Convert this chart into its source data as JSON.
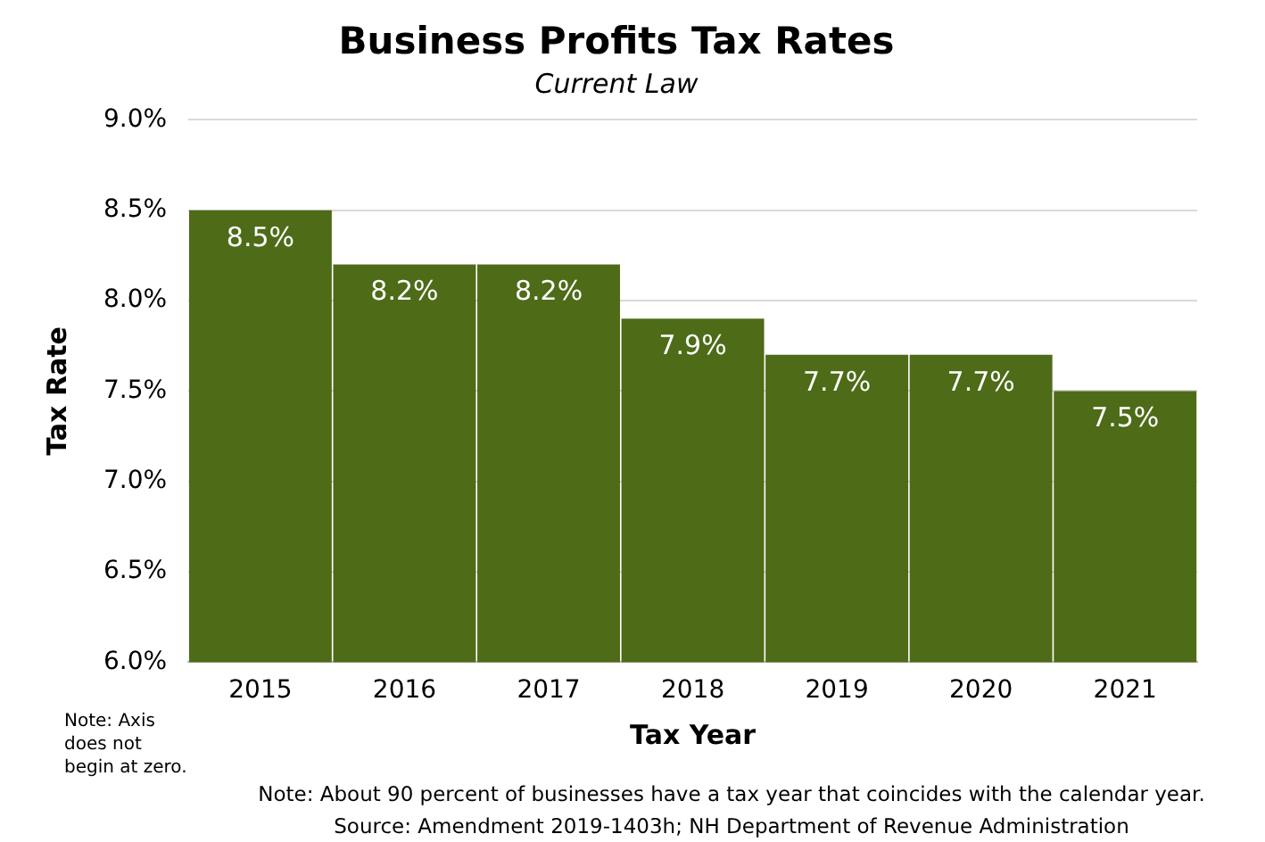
{
  "chart_data": {
    "type": "bar",
    "title": "Business Profits Tax Rates",
    "subtitle": "Current Law",
    "xlabel": "Tax Year",
    "ylabel": "Tax Rate",
    "categories": [
      "2015",
      "2016",
      "2017",
      "2018",
      "2019",
      "2020",
      "2021"
    ],
    "values": [
      8.5,
      8.2,
      8.2,
      7.9,
      7.7,
      7.7,
      7.5
    ],
    "value_labels": [
      "8.5%",
      "8.2%",
      "8.2%",
      "7.9%",
      "7.7%",
      "7.7%",
      "7.5%"
    ],
    "color": "#4e6b18",
    "ylim": [
      6,
      9
    ],
    "yticks": [
      {
        "value": 6,
        "label": "6.0%"
      },
      {
        "value": 6.5,
        "label": "6.5%"
      },
      {
        "value": 7,
        "label": "7.0%"
      },
      {
        "value": 7.5,
        "label": "7.5%"
      },
      {
        "value": 8,
        "label": "8.0%"
      },
      {
        "value": 8.5,
        "label": "8.5%"
      },
      {
        "value": 9,
        "label": "9.0%"
      }
    ],
    "grid": "y",
    "annotations": [
      "Note: Axis does not begin at zero.",
      "Note: About 90 percent of businesses have a tax year that coincides with the calendar year.",
      "Source: Amendment 2019-1403h; NH Department of Revenue Administration"
    ]
  }
}
